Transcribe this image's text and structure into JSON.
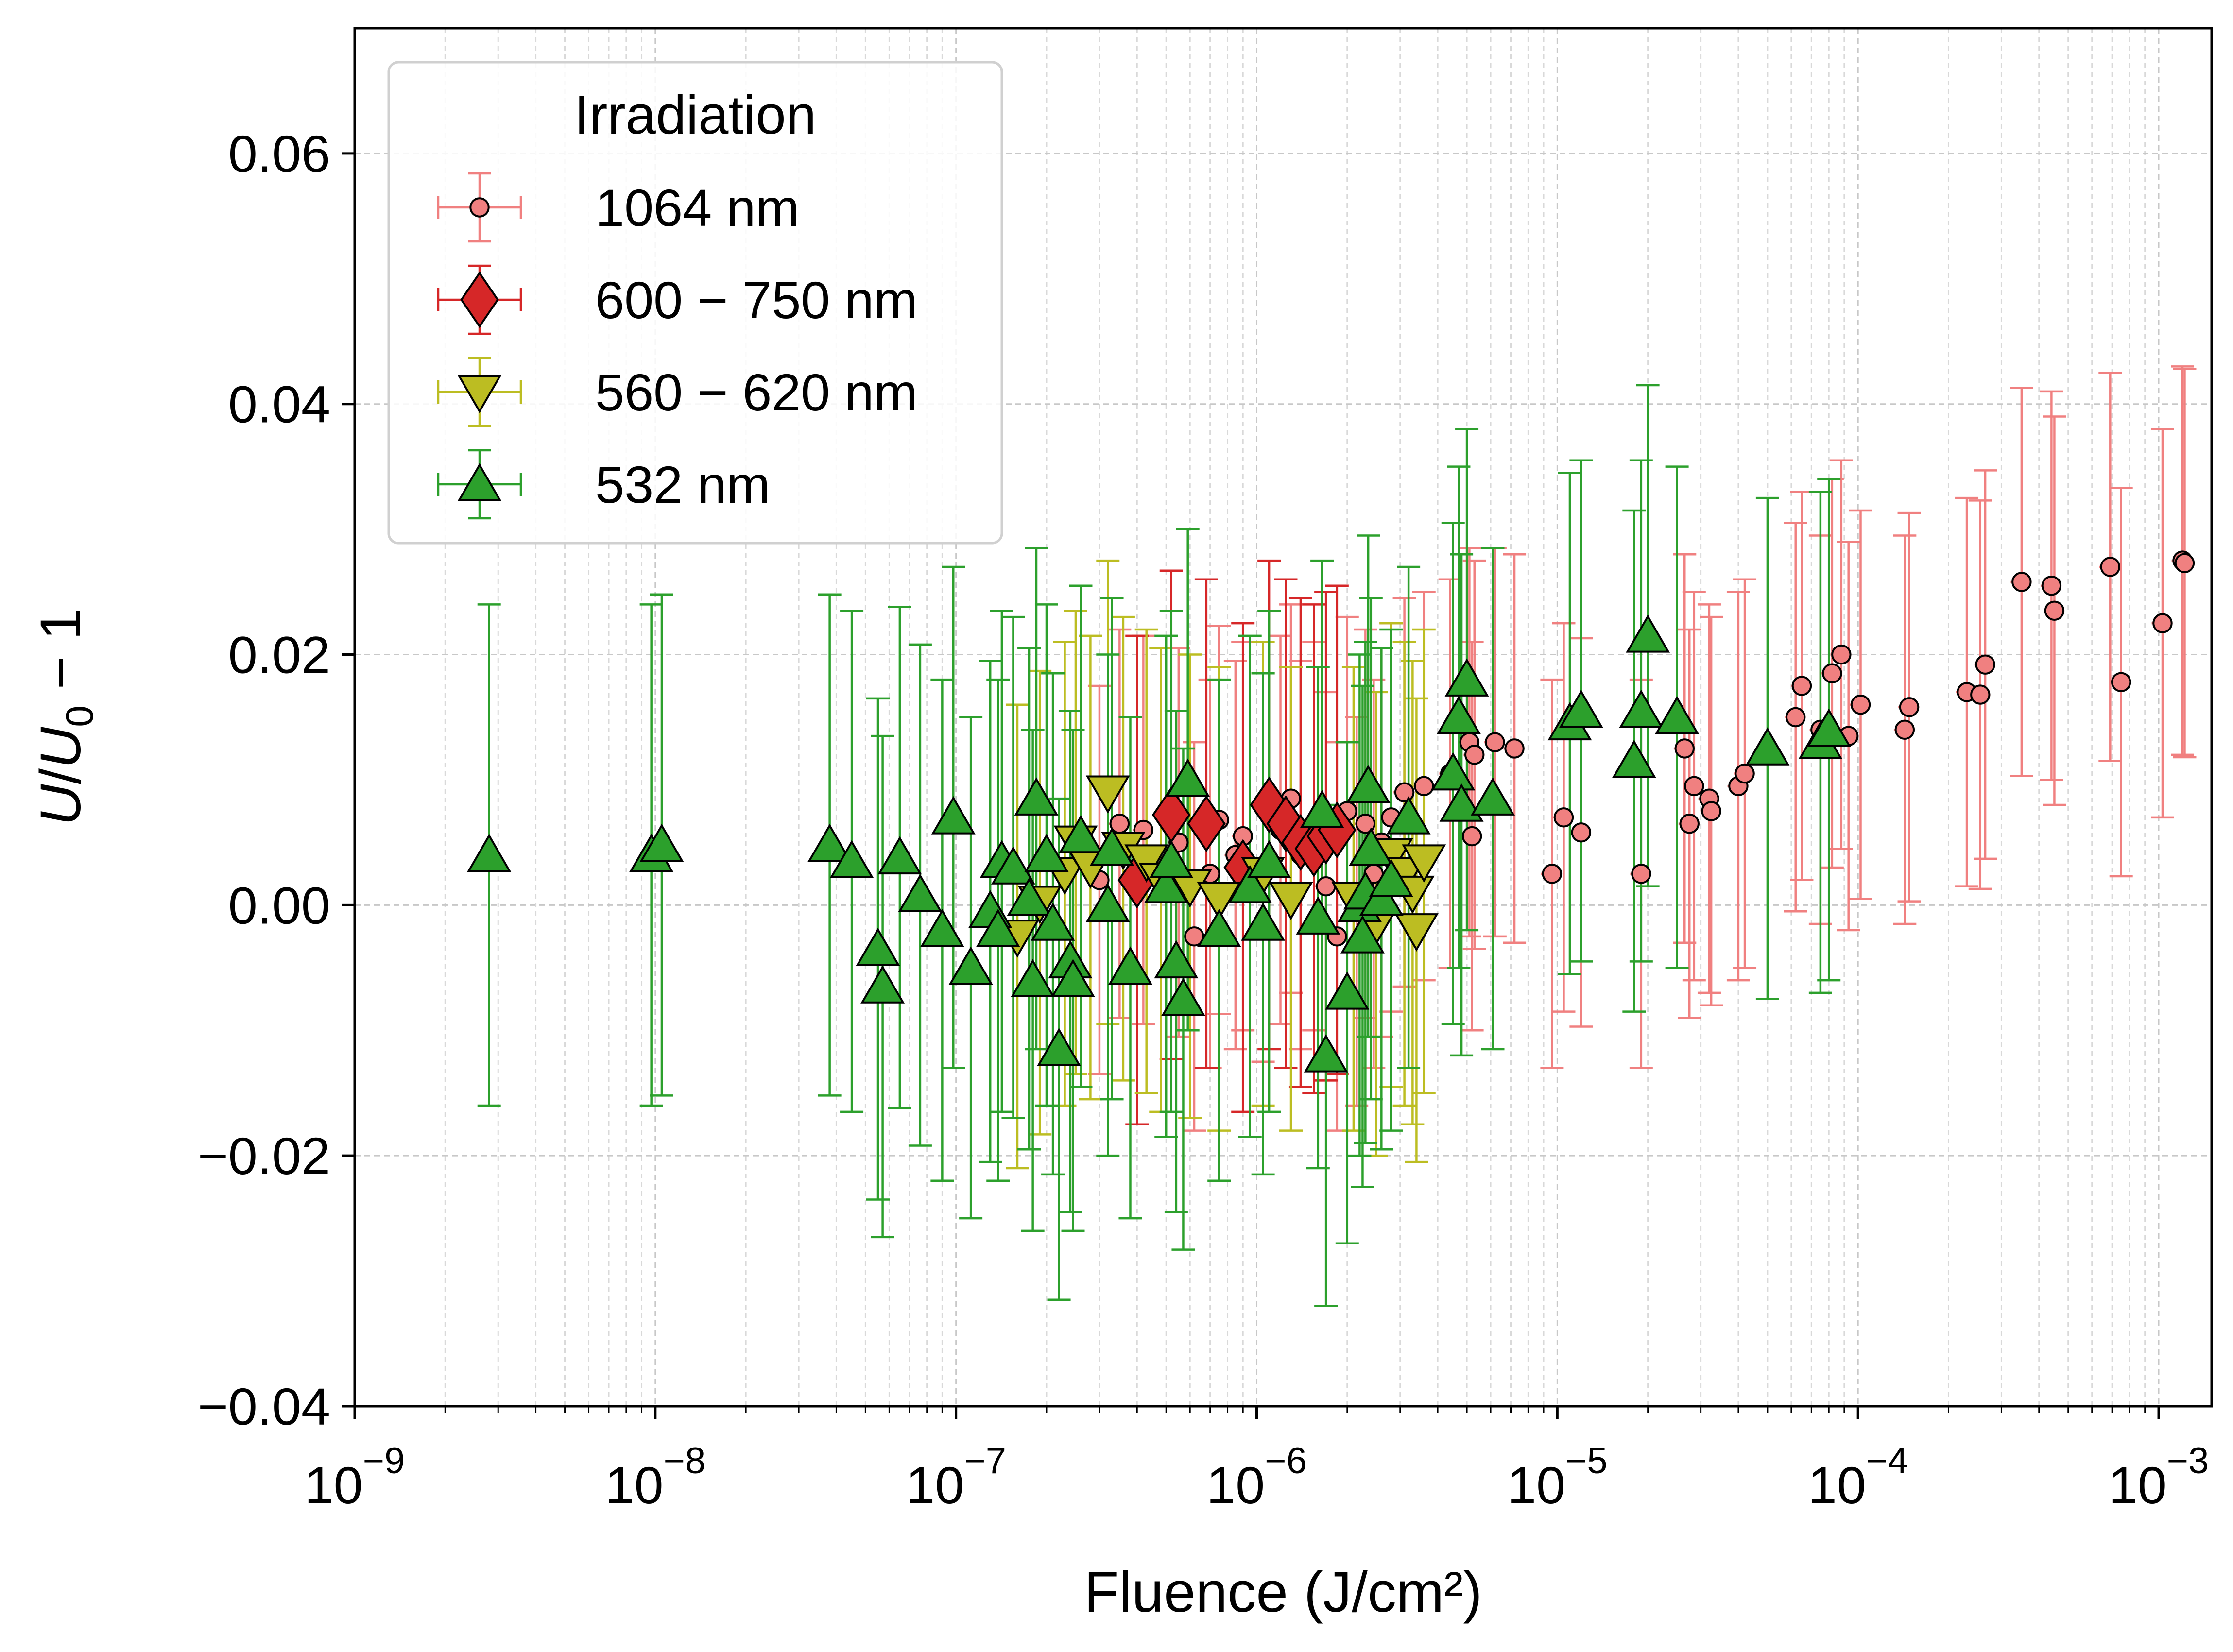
{
  "chart_data": {
    "type": "scatter",
    "xscale": "log",
    "xlim": [
      1e-09,
      0.0015
    ],
    "ylim": [
      -0.04,
      0.07
    ],
    "grid": true,
    "xlabel": "Fluence (J/cm²)",
    "ylabel_parts": {
      "u": "U",
      "slash": "/",
      "u0": "U",
      "sub": "0",
      "suffix": " − 1"
    },
    "x_ticks": [
      {
        "value": 1e-09,
        "base": "10",
        "exp": "−9"
      },
      {
        "value": 1e-08,
        "base": "10",
        "exp": "−8"
      },
      {
        "value": 1e-07,
        "base": "10",
        "exp": "−7"
      },
      {
        "value": 1e-06,
        "base": "10",
        "exp": "−6"
      },
      {
        "value": 1e-05,
        "base": "10",
        "exp": "−5"
      },
      {
        "value": 0.0001,
        "base": "10",
        "exp": "−4"
      },
      {
        "value": 0.001,
        "base": "10",
        "exp": "−3"
      }
    ],
    "y_ticks": [
      {
        "value": -0.04,
        "label": "−0.04"
      },
      {
        "value": -0.02,
        "label": "−0.02"
      },
      {
        "value": 0.0,
        "label": "0.00"
      },
      {
        "value": 0.02,
        "label": "0.02"
      },
      {
        "value": 0.04,
        "label": "0.04"
      },
      {
        "value": 0.06,
        "label": "0.06"
      }
    ],
    "legend": {
      "title": "Irradiation",
      "position": "top-left"
    },
    "series": [
      {
        "name": "1064 nm",
        "marker": "circle",
        "color": "#f08080",
        "edge": "#000000",
        "bar_color": "#f08080",
        "yerr": 0.0155,
        "points": [
          [
            3e-07,
            0.002
          ],
          [
            3.5e-07,
            0.0065
          ],
          [
            4.2e-07,
            0.006
          ],
          [
            5.5e-07,
            0.005
          ],
          [
            6.2e-07,
            -0.0025
          ],
          [
            7e-07,
            0.0025
          ],
          [
            7.5e-07,
            0.0068
          ],
          [
            8.5e-07,
            0.004
          ],
          [
            9e-07,
            0.0055
          ],
          [
            1.05e-06,
            0.003
          ],
          [
            1.2e-06,
            0.006
          ],
          [
            1.3e-06,
            0.0085
          ],
          [
            1.4e-06,
            0.004
          ],
          [
            1.55e-06,
            0.0055
          ],
          [
            1.7e-06,
            0.0015
          ],
          [
            1.85e-06,
            -0.0025
          ],
          [
            2e-06,
            0.0075
          ],
          [
            2.15e-06,
            -0.0005
          ],
          [
            2.3e-06,
            0.0065
          ],
          [
            2.45e-06,
            0.0025
          ],
          [
            2.6e-06,
            0.005
          ],
          [
            2.8e-06,
            0.007
          ],
          [
            3.1e-06,
            0.009
          ],
          [
            3.6e-06,
            0.0095
          ],
          [
            4.4e-06,
            0.0105
          ],
          [
            5.1e-06,
            0.013
          ],
          [
            5.2e-06,
            0.0055
          ],
          [
            5.3e-06,
            0.012
          ],
          [
            6.2e-06,
            0.013
          ],
          [
            7.2e-06,
            0.0125
          ],
          [
            9.6e-06,
            0.0025
          ],
          [
            1.05e-05,
            0.007
          ],
          [
            1.2e-05,
            0.0058
          ],
          [
            1.9e-05,
            0.0025
          ],
          [
            2.65e-05,
            0.0125
          ],
          [
            2.75e-05,
            0.0065
          ],
          [
            2.85e-05,
            0.0095
          ],
          [
            3.2e-05,
            0.0085
          ],
          [
            3.25e-05,
            0.0075
          ],
          [
            4e-05,
            0.0095
          ],
          [
            4.2e-05,
            0.0105
          ],
          [
            6.2e-05,
            0.015
          ],
          [
            6.5e-05,
            0.0175
          ],
          [
            7.5e-05,
            0.014
          ],
          [
            8.2e-05,
            0.0185
          ],
          [
            8.8e-05,
            0.02
          ],
          [
            9.3e-05,
            0.0135
          ],
          [
            0.000102,
            0.016
          ],
          [
            0.000143,
            0.014
          ],
          [
            0.000148,
            0.0158
          ],
          [
            0.00023,
            0.017
          ],
          [
            0.000255,
            0.0168
          ],
          [
            0.000265,
            0.0192
          ],
          [
            0.00035,
            0.0258
          ],
          [
            0.00044,
            0.0255
          ],
          [
            0.00045,
            0.0235
          ],
          [
            0.00069,
            0.027
          ],
          [
            0.00075,
            0.0178
          ],
          [
            0.00103,
            0.0225
          ],
          [
            0.0012,
            0.0275
          ],
          [
            0.00122,
            0.0273
          ]
        ]
      },
      {
        "name": "600 − 750 nm",
        "marker": "diamond",
        "color": "#d62728",
        "edge": "#000000",
        "bar_color": "#d62728",
        "yerr": 0.0195,
        "points": [
          [
            4e-07,
            0.002
          ],
          [
            5.2e-07,
            0.0072
          ],
          [
            6.8e-07,
            0.0065
          ],
          [
            9e-07,
            0.003
          ],
          [
            1.1e-06,
            0.008
          ],
          [
            1.25e-06,
            0.0065
          ],
          [
            1.4e-06,
            0.005
          ],
          [
            1.55e-06,
            0.0045
          ],
          [
            1.7e-06,
            0.0055
          ],
          [
            1.85e-06,
            0.006
          ]
        ]
      },
      {
        "name": "560 − 620 nm",
        "marker": "triangle-down",
        "color": "#bcbd22",
        "edge": "#000000",
        "bar_color": "#bcbd22",
        "yerr": 0.0185,
        "points": [
          [
            1.6e-07,
            -0.0025
          ],
          [
            1.9e-07,
            0.0002
          ],
          [
            2.3e-07,
            0.0025
          ],
          [
            2.5e-07,
            0.005
          ],
          [
            2.8e-07,
            0.003
          ],
          [
            3.2e-07,
            0.009
          ],
          [
            3.6e-07,
            0.0045
          ],
          [
            4.3e-07,
            0.0035
          ],
          [
            4.8e-07,
            0.002
          ],
          [
            6e-07,
            0.0015
          ],
          [
            7.5e-07,
            0.0005
          ],
          [
            1.05e-06,
            0.0025
          ],
          [
            1.3e-06,
            0.0005
          ],
          [
            2.1e-06,
            0.0005
          ],
          [
            2.5e-06,
            -0.0015
          ],
          [
            2.8e-06,
            0.004
          ],
          [
            3.1e-06,
            0.0025
          ],
          [
            3.3e-06,
            0.001
          ],
          [
            3.4e-06,
            -0.002
          ],
          [
            3.6e-06,
            0.0035
          ]
        ]
      },
      {
        "name": "532 nm",
        "marker": "triangle-up",
        "color": "#2ca02c",
        "edge": "#000000",
        "bar_color": "#2ca02c",
        "yerr": 0.02,
        "points": [
          [
            2.8e-09,
            0.004
          ],
          [
            9.7e-09,
            0.004
          ],
          [
            1.05e-08,
            0.0048
          ],
          [
            3.8e-08,
            0.0048
          ],
          [
            4.5e-08,
            0.0035
          ],
          [
            5.5e-08,
            -0.0035
          ],
          [
            5.7e-08,
            -0.0065
          ],
          [
            6.5e-08,
            0.0038
          ],
          [
            7.6e-08,
            0.0008
          ],
          [
            9e-08,
            -0.002
          ],
          [
            9.8e-08,
            0.007
          ],
          [
            1.12e-07,
            -0.005
          ],
          [
            1.3e-07,
            -0.0005
          ],
          [
            1.38e-07,
            -0.002
          ],
          [
            1.42e-07,
            0.0035
          ],
          [
            1.55e-07,
            0.003
          ],
          [
            1.75e-07,
            0.0005
          ],
          [
            1.8e-07,
            -0.006
          ],
          [
            1.85e-07,
            0.0085
          ],
          [
            2e-07,
            0.004
          ],
          [
            2.1e-07,
            -0.0015
          ],
          [
            2.2e-07,
            -0.0115
          ],
          [
            2.4e-07,
            -0.0045
          ],
          [
            2.45e-07,
            -0.006
          ],
          [
            2.6e-07,
            0.0055
          ],
          [
            3.2e-07,
            0.0
          ],
          [
            3.3e-07,
            0.0045
          ],
          [
            3.8e-07,
            -0.005
          ],
          [
            5e-07,
            0.0015
          ],
          [
            5.2e-07,
            0.0035
          ],
          [
            5.4e-07,
            -0.0045
          ],
          [
            5.7e-07,
            -0.0075
          ],
          [
            5.9e-07,
            0.01
          ],
          [
            7.5e-07,
            -0.002
          ],
          [
            9.5e-07,
            0.0015
          ],
          [
            1.05e-06,
            -0.0015
          ],
          [
            1.1e-06,
            0.0035
          ],
          [
            1.6e-06,
            -0.001
          ],
          [
            1.65e-06,
            0.0075
          ],
          [
            1.7e-06,
            -0.012
          ],
          [
            2e-06,
            -0.007
          ],
          [
            2.2e-06,
            0.0
          ],
          [
            2.25e-06,
            -0.0025
          ],
          [
            2.3e-06,
            0.001
          ],
          [
            2.35e-06,
            0.0095
          ],
          [
            2.4e-06,
            0.0045
          ],
          [
            2.6e-06,
            0.0005
          ],
          [
            2.8e-06,
            0.002
          ],
          [
            3.2e-06,
            0.007
          ],
          [
            4.5e-06,
            0.0105
          ],
          [
            4.7e-06,
            0.015
          ],
          [
            4.8e-06,
            0.008
          ],
          [
            5e-06,
            0.018
          ],
          [
            6.1e-06,
            0.0085
          ],
          [
            1.1e-05,
            0.0145
          ],
          [
            1.2e-05,
            0.0155
          ],
          [
            1.8e-05,
            0.0115
          ],
          [
            1.9e-05,
            0.0155
          ],
          [
            2e-05,
            0.0215
          ],
          [
            2.5e-05,
            0.015
          ],
          [
            5e-05,
            0.0125
          ],
          [
            7.5e-05,
            0.013
          ],
          [
            8e-05,
            0.014
          ]
        ]
      }
    ]
  }
}
